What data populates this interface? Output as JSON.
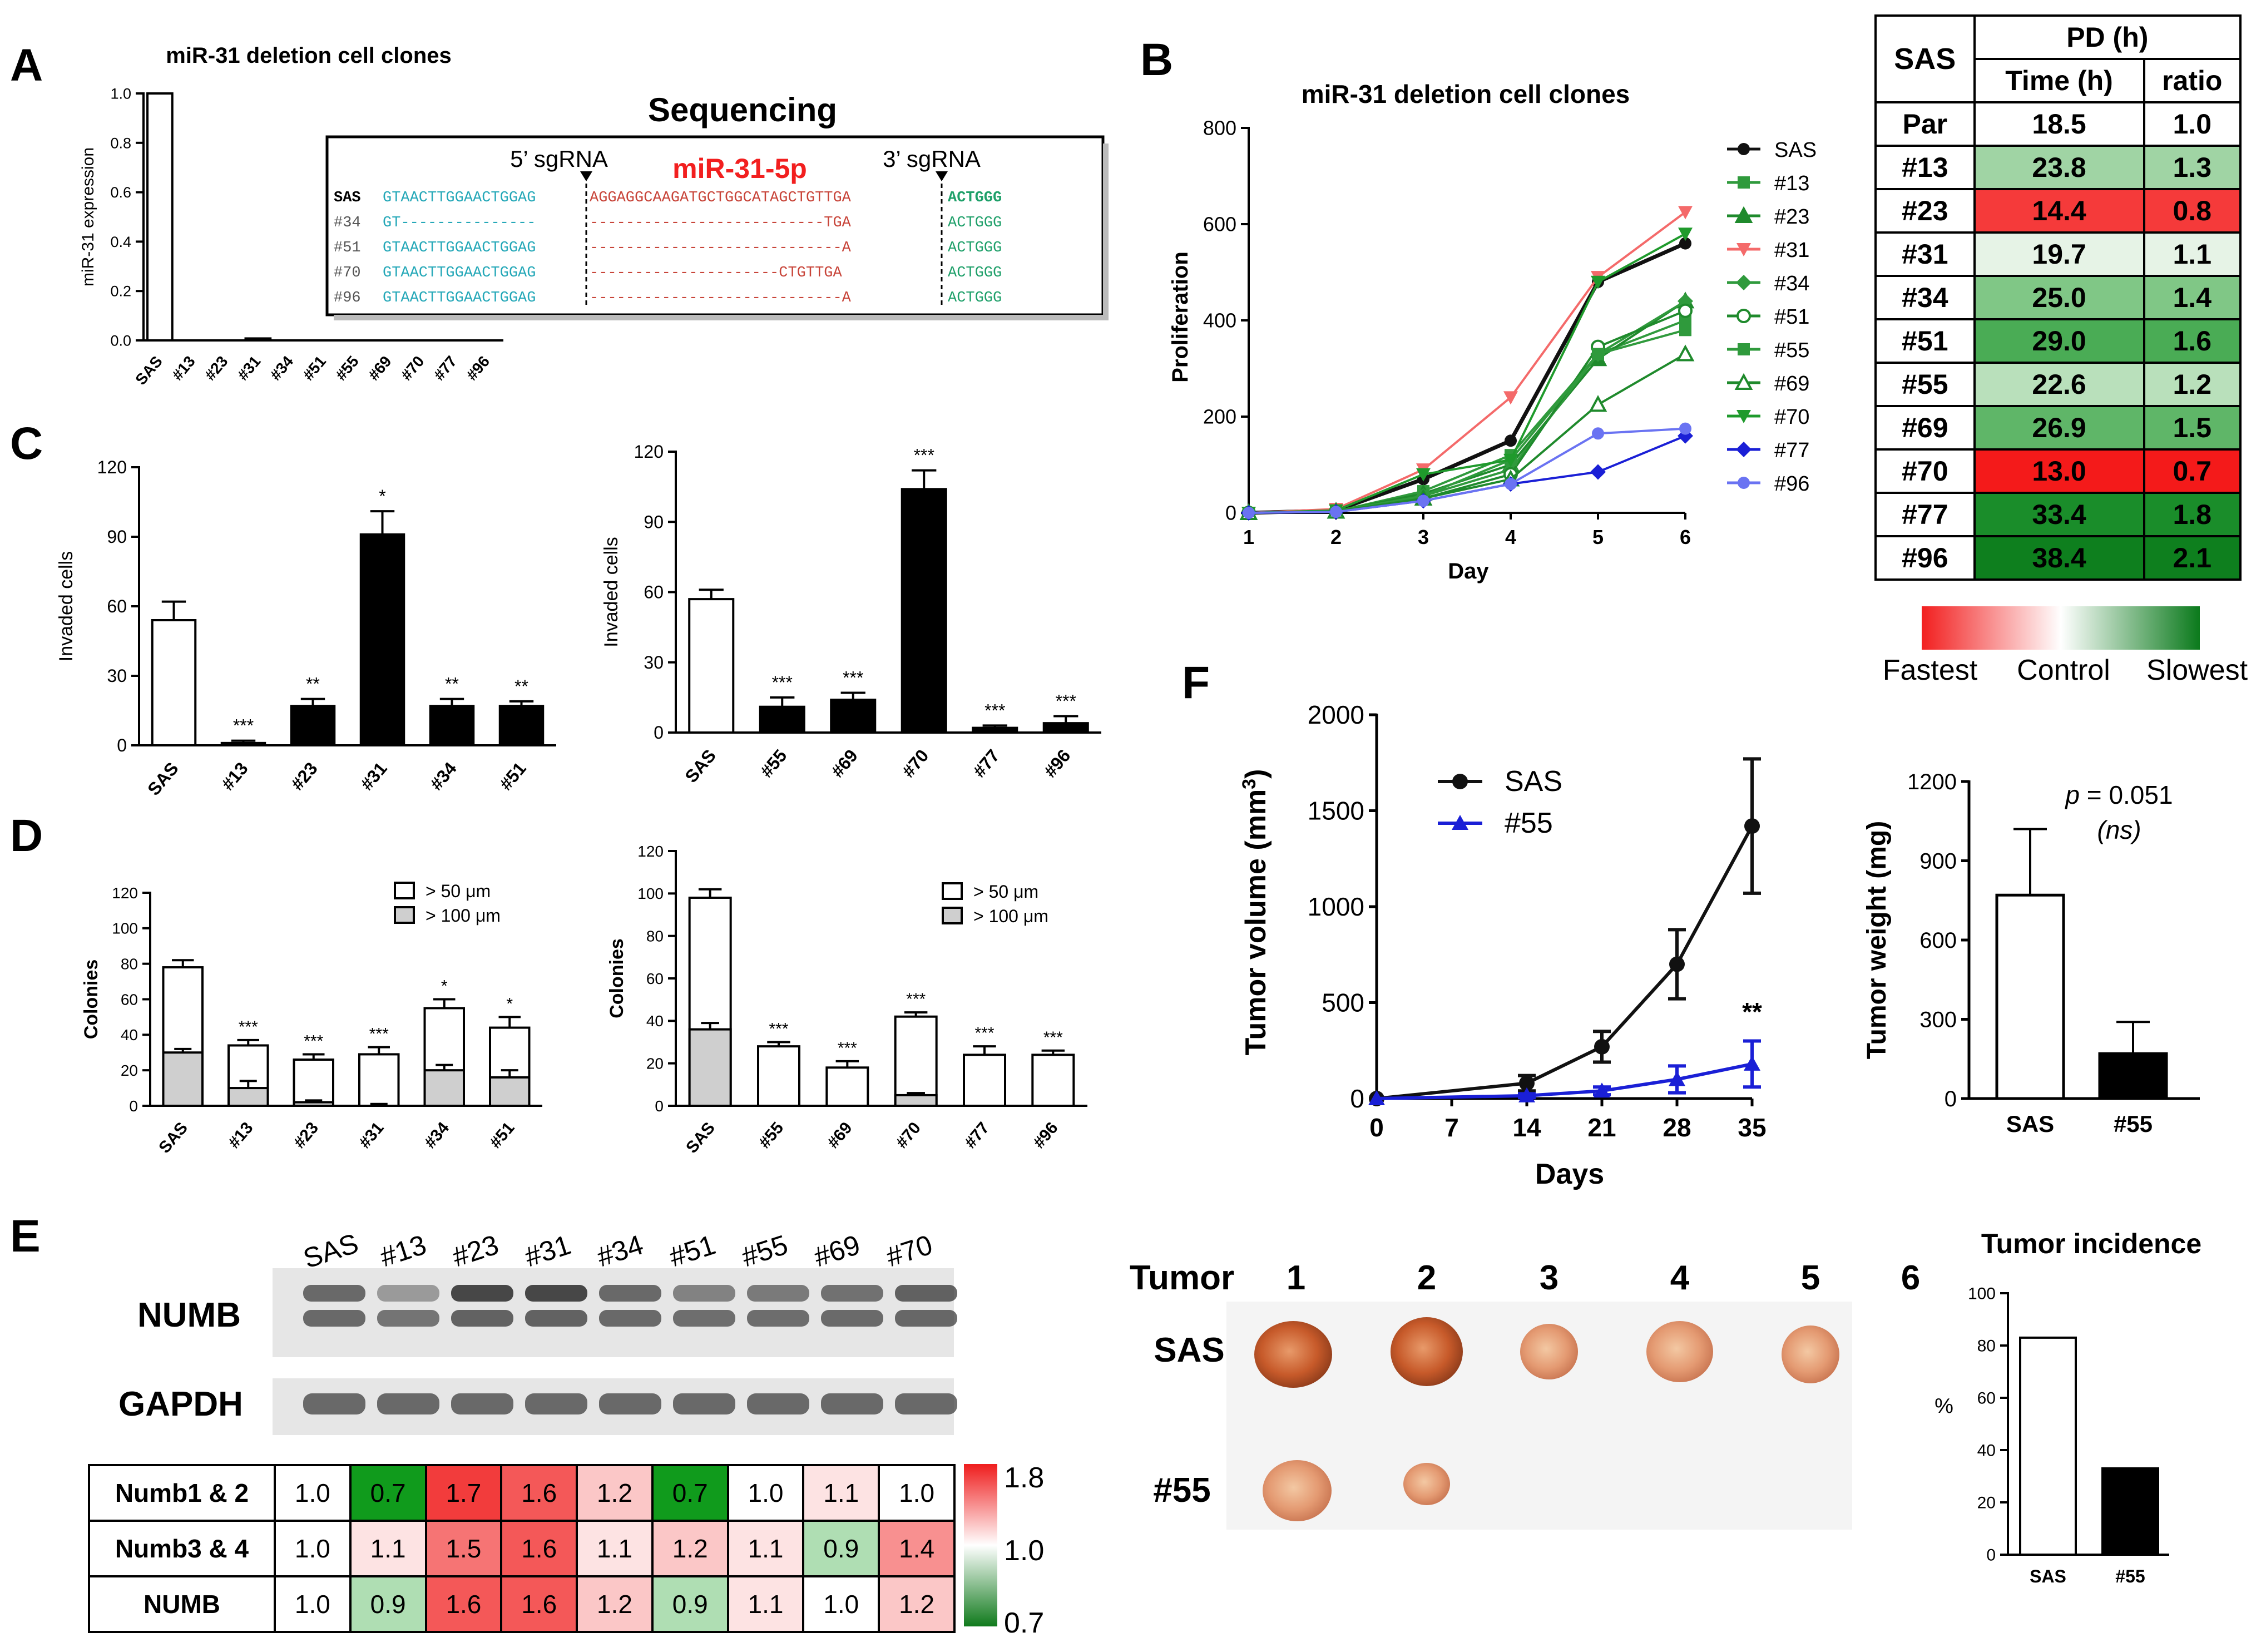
{
  "panel_letters": [
    "A",
    "B",
    "C",
    "D",
    "E",
    "F"
  ],
  "colors": {
    "green_dark": "#0b7a1c",
    "green_mid": "#3ea84a",
    "red_bright": "#f21f1f",
    "blue_dark": "#1a1fd6",
    "blue_light": "#6a73f2",
    "salmon": "#f46a6a",
    "gray_fill": "#cfcfcf"
  },
  "chart_data": [
    {
      "id": "A",
      "type": "bar",
      "title": "miR-31 deletion cell clones",
      "xlabel": "",
      "ylabel": "miR-31 expression",
      "categories": [
        "SAS",
        "#13",
        "#23",
        "#31",
        "#34",
        "#51",
        "#55",
        "#69",
        "#70",
        "#77",
        "#96"
      ],
      "values": [
        1.0,
        0,
        0,
        0.008,
        0,
        0,
        0,
        0,
        0,
        0,
        0
      ],
      "ylim": [
        0,
        1.0
      ],
      "yticks": [
        "0.0",
        "0.2",
        "0.4",
        "0.6",
        "0.8",
        "1.0"
      ]
    },
    {
      "id": "A-inset",
      "type": "table",
      "title": "Sequencing",
      "labels": {
        "sg5": "5’ sgRNA",
        "sg3": "3’ sgRNA",
        "mirna": "miR-31-5p"
      },
      "rows": [
        {
          "name": "SAS",
          "left": "GTAACTTGGAACTGGAG",
          "mid": "AGGAGGCAAGATGCTGGCATAGCTGTTGA",
          "right": "ACTGGG"
        },
        {
          "name": "#34",
          "left": "GT---------------",
          "mid": "--------------------------TGA",
          "right": "ACTGGG"
        },
        {
          "name": "#51",
          "left": "GTAACTTGGAACTGGAG",
          "mid": "----------------------------A",
          "right": "ACTGGG"
        },
        {
          "name": "#70",
          "left": "GTAACTTGGAACTGGAG",
          "mid": "---------------------CTGTTGA",
          "right": "ACTGGG"
        },
        {
          "name": "#96",
          "left": "GTAACTTGGAACTGGAG",
          "mid": "----------------------------A",
          "right": "ACTGGG"
        }
      ]
    },
    {
      "id": "B",
      "type": "line",
      "title": "miR-31  deletion cell clones",
      "xlabel": "Day",
      "ylabel": "Proliferation",
      "x": [
        1,
        2,
        3,
        4,
        5,
        6
      ],
      "xlim": [
        1,
        6
      ],
      "ylim": [
        0,
        800
      ],
      "yticks": [
        "0",
        "200",
        "400",
        "600",
        "800"
      ],
      "xticks": [
        "1",
        "2",
        "3",
        "4",
        "5",
        "6"
      ],
      "series": [
        {
          "name": "SAS",
          "color": "#111111",
          "marker": "circle",
          "values": [
            0,
            5,
            70,
            150,
            480,
            560
          ]
        },
        {
          "name": "#13",
          "color": "#2f9a3c",
          "marker": "square",
          "values": [
            0,
            3,
            45,
            120,
            330,
            400
          ]
        },
        {
          "name": "#23",
          "color": "#1f8a2c",
          "marker": "triangle",
          "values": [
            0,
            3,
            40,
            100,
            320,
            440
          ]
        },
        {
          "name": "#31",
          "color": "#f46a6a",
          "marker": "triangle-down",
          "values": [
            0,
            8,
            90,
            240,
            490,
            625
          ]
        },
        {
          "name": "#34",
          "color": "#2f9a3c",
          "marker": "diamond",
          "values": [
            0,
            3,
            35,
            90,
            330,
            440
          ]
        },
        {
          "name": "#51",
          "color": "#1f8a2c",
          "marker": "circle-open",
          "values": [
            0,
            3,
            30,
            80,
            345,
            420
          ]
        },
        {
          "name": "#55",
          "color": "#2f9a3c",
          "marker": "square",
          "values": [
            0,
            3,
            35,
            110,
            330,
            380
          ]
        },
        {
          "name": "#69",
          "color": "#1f8a2c",
          "marker": "triangle-open",
          "values": [
            0,
            3,
            30,
            70,
            225,
            330
          ]
        },
        {
          "name": "#70",
          "color": "#1f9a2c",
          "marker": "triangle-down",
          "values": [
            0,
            5,
            80,
            110,
            480,
            580
          ]
        },
        {
          "name": "#77",
          "color": "#1a1fd6",
          "marker": "diamond",
          "values": [
            0,
            2,
            25,
            60,
            85,
            160
          ]
        },
        {
          "name": "#96",
          "color": "#6a73f2",
          "marker": "circle",
          "values": [
            0,
            2,
            25,
            60,
            165,
            175
          ]
        }
      ]
    },
    {
      "id": "B-table",
      "type": "table",
      "header": {
        "group": "SAS",
        "pd": "PD (h)",
        "time": "Time (h)",
        "ratio": "ratio"
      },
      "rows": [
        {
          "name": "Par",
          "time": "18.5",
          "ratio": "1.0"
        },
        {
          "name": "#13",
          "time": "23.8",
          "ratio": "1.3"
        },
        {
          "name": "#23",
          "time": "14.4",
          "ratio": "0.8"
        },
        {
          "name": "#31",
          "time": "19.7",
          "ratio": "1.1"
        },
        {
          "name": "#34",
          "time": "25.0",
          "ratio": "1.4"
        },
        {
          "name": "#51",
          "time": "29.0",
          "ratio": "1.6"
        },
        {
          "name": "#55",
          "time": "22.6",
          "ratio": "1.2"
        },
        {
          "name": "#69",
          "time": "26.9",
          "ratio": "1.5"
        },
        {
          "name": "#70",
          "time": "13.0",
          "ratio": "0.7"
        },
        {
          "name": "#77",
          "time": "33.4",
          "ratio": "1.8"
        },
        {
          "name": "#96",
          "time": "38.4",
          "ratio": "2.1"
        }
      ],
      "colorbar": {
        "left": "Fastest",
        "mid": "Control",
        "right": "Slowest"
      }
    },
    {
      "id": "C-left",
      "type": "bar",
      "ylabel": "Invaded cells",
      "categories": [
        "SAS",
        "#13",
        "#23",
        "#31",
        "#34",
        "#51"
      ],
      "values": [
        54,
        1,
        17,
        91,
        17,
        17
      ],
      "errors": [
        8,
        1,
        3,
        10,
        3,
        2
      ],
      "significance": [
        "",
        "***",
        "**",
        "*",
        "**",
        "**"
      ],
      "ylim": [
        0,
        120
      ],
      "yticks": [
        "0",
        "30",
        "60",
        "90",
        "120"
      ]
    },
    {
      "id": "C-right",
      "type": "bar",
      "ylabel": "Invaded cells",
      "categories": [
        "SAS",
        "#55",
        "#69",
        "#70",
        "#77",
        "#96"
      ],
      "values": [
        57,
        11,
        14,
        104,
        2,
        4
      ],
      "errors": [
        4,
        4,
        3,
        8,
        1,
        3
      ],
      "significance": [
        "",
        "***",
        "***",
        "***",
        "***",
        "***"
      ],
      "ylim": [
        0,
        120
      ],
      "yticks": [
        "0",
        "30",
        "60",
        "90",
        "120"
      ]
    },
    {
      "id": "D-left",
      "type": "bar",
      "ylabel": "Colonies",
      "legend": [
        ">  50  μm",
        "> 100  μm"
      ],
      "categories": [
        "SAS",
        "#13",
        "#23",
        "#31",
        "#34",
        "#51"
      ],
      "series": [
        {
          "name": "> 50 μm",
          "values": [
            78,
            34,
            26,
            29,
            55,
            44
          ],
          "errors": [
            4,
            3,
            3,
            4,
            5,
            6
          ]
        },
        {
          "name": "> 100 μm",
          "values": [
            30,
            10,
            2,
            0,
            20,
            16
          ],
          "errors": [
            2,
            4,
            1,
            1,
            3,
            4
          ]
        }
      ],
      "significance": [
        "",
        "***",
        "***",
        "***",
        "*",
        "*"
      ],
      "ylim": [
        0,
        120
      ],
      "yticks": [
        "0",
        "20",
        "40",
        "60",
        "80",
        "100",
        "120"
      ]
    },
    {
      "id": "D-right",
      "type": "bar",
      "ylabel": "Colonies",
      "legend": [
        ">  50 μm",
        "> 100 μm"
      ],
      "categories": [
        "SAS",
        "#55",
        "#69",
        "#70",
        "#77",
        "#96"
      ],
      "series": [
        {
          "name": "> 50 μm",
          "values": [
            98,
            28,
            18,
            42,
            24,
            24
          ],
          "errors": [
            4,
            2,
            3,
            2,
            4,
            2
          ]
        },
        {
          "name": "> 100 μm",
          "values": [
            36,
            0,
            0,
            5,
            0,
            0
          ],
          "errors": [
            3,
            0,
            0,
            1,
            0,
            0
          ]
        }
      ],
      "significance": [
        "",
        "***",
        "***",
        "***",
        "***",
        "***"
      ],
      "ylim": [
        0,
        120
      ],
      "yticks": [
        "0",
        "20",
        "40",
        "60",
        "80",
        "100",
        "120"
      ]
    },
    {
      "id": "E-table",
      "type": "heatmap",
      "lane_labels": [
        "SAS",
        "#13",
        "#23",
        "#31",
        "#34",
        "#51",
        "#55",
        "#69",
        "#70"
      ],
      "blot_labels": [
        "NUMB",
        "GAPDH"
      ],
      "rows": [
        {
          "name": "Numb1 & 2",
          "values": [
            "1.0",
            "0.7",
            "1.7",
            "1.6",
            "1.2",
            "0.7",
            "1.0",
            "1.1",
            "1.0"
          ]
        },
        {
          "name": "Numb3 & 4",
          "values": [
            "1.0",
            "1.1",
            "1.5",
            "1.6",
            "1.1",
            "1.2",
            "1.1",
            "0.9",
            "1.4"
          ]
        },
        {
          "name": "NUMB",
          "values": [
            "1.0",
            "0.9",
            "1.6",
            "1.6",
            "1.2",
            "0.9",
            "1.1",
            "1.0",
            "1.2"
          ]
        }
      ],
      "colorbar_ticks": [
        "1.8",
        "1.0",
        "0.7"
      ]
    },
    {
      "id": "F-volume",
      "type": "line",
      "xlabel": "Days",
      "ylabel": "Tumor volume (mm",
      "ylabel_sup": "3",
      "ylabel_end": ")",
      "x": [
        0,
        14,
        21,
        28,
        35
      ],
      "xticks": [
        "0",
        "7",
        "14",
        "21",
        "28",
        "35"
      ],
      "yticks": [
        "0",
        "500",
        "1000",
        "1500",
        "2000"
      ],
      "xlim": [
        0,
        35
      ],
      "ylim": [
        0,
        2000
      ],
      "series": [
        {
          "name": "SAS",
          "values": [
            0,
            80,
            270,
            700,
            1420
          ],
          "errors": [
            0,
            40,
            80,
            180,
            350
          ]
        },
        {
          "name": "#55",
          "values": [
            0,
            15,
            40,
            100,
            180
          ],
          "errors": [
            0,
            10,
            20,
            70,
            120
          ]
        }
      ],
      "annotation": "**"
    },
    {
      "id": "F-weight",
      "type": "bar",
      "ylabel": "Tumor weight (mg)",
      "categories": [
        "SAS",
        "#55"
      ],
      "values": [
        770,
        170
      ],
      "errors": [
        250,
        120
      ],
      "ylim": [
        0,
        1200
      ],
      "yticks": [
        "0",
        "300",
        "600",
        "900",
        "1200"
      ],
      "p_label": "p",
      "p_value": " = 0.051",
      "ns_label": "(ns)"
    },
    {
      "id": "F-incidence",
      "type": "bar",
      "title": "Tumor incidence",
      "ylabel": "%",
      "categories": [
        "SAS",
        "#55"
      ],
      "values": [
        83,
        33
      ],
      "ylim": [
        0,
        100
      ],
      "yticks": [
        "0",
        "20",
        "40",
        "60",
        "80",
        "100"
      ]
    }
  ],
  "tumor_photo": {
    "header": "Tumor",
    "columns": [
      "1",
      "2",
      "3",
      "4",
      "5",
      "6"
    ],
    "rows": [
      "SAS",
      "#55"
    ]
  }
}
